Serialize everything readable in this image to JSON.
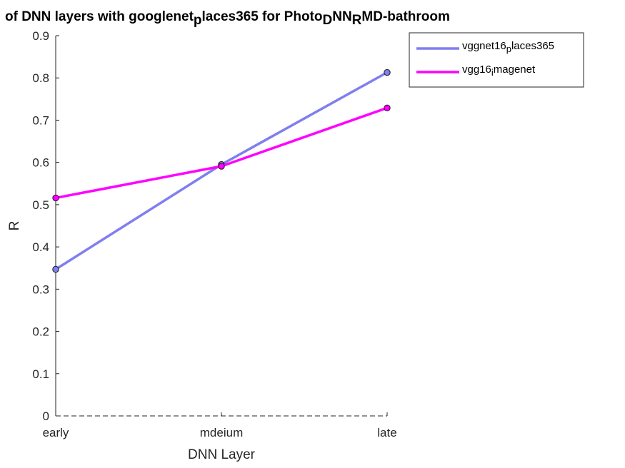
{
  "chart_data": {
    "type": "line",
    "title": {
      "parts": [
        {
          "text": "of DNN layers with googlenet",
          "sub": false
        },
        {
          "text": "p",
          "sub": true
        },
        {
          "text": "laces365 for Photo",
          "sub": false
        },
        {
          "text": "D",
          "sub": true
        },
        {
          "text": "NN",
          "sub": false
        },
        {
          "text": "R",
          "sub": true
        },
        {
          "text": "MD-bathroom",
          "sub": false
        }
      ]
    },
    "xlabel": "DNN Layer",
    "ylabel": "R",
    "categories": [
      "early",
      "mdeium",
      "late"
    ],
    "ylim": [
      0,
      0.9
    ],
    "yticks": [
      0,
      0.1,
      0.2,
      0.3,
      0.4,
      0.5,
      0.6,
      0.7,
      0.8,
      0.9
    ],
    "ytick_labels": [
      "0",
      "0.1",
      "0.2",
      "0.3",
      "0.4",
      "0.5",
      "0.6",
      "0.7",
      "0.8",
      "0.9"
    ],
    "grid": false,
    "legend_position": "top-right",
    "series": [
      {
        "name": "vggnet16_places365",
        "legend_parts": [
          {
            "text": "vggnet16",
            "sub": false
          },
          {
            "text": "p",
            "sub": true
          },
          {
            "text": "laces365",
            "sub": false
          }
        ],
        "values": [
          0.347,
          0.595,
          0.813
        ],
        "color": "#7f7fef"
      },
      {
        "name": "vgg16_imagenet",
        "legend_parts": [
          {
            "text": "vgg16",
            "sub": false
          },
          {
            "text": "i",
            "sub": true
          },
          {
            "text": "magenet",
            "sub": false
          }
        ],
        "values": [
          0.516,
          0.591,
          0.729
        ],
        "color": "#ff00ff"
      }
    ]
  }
}
